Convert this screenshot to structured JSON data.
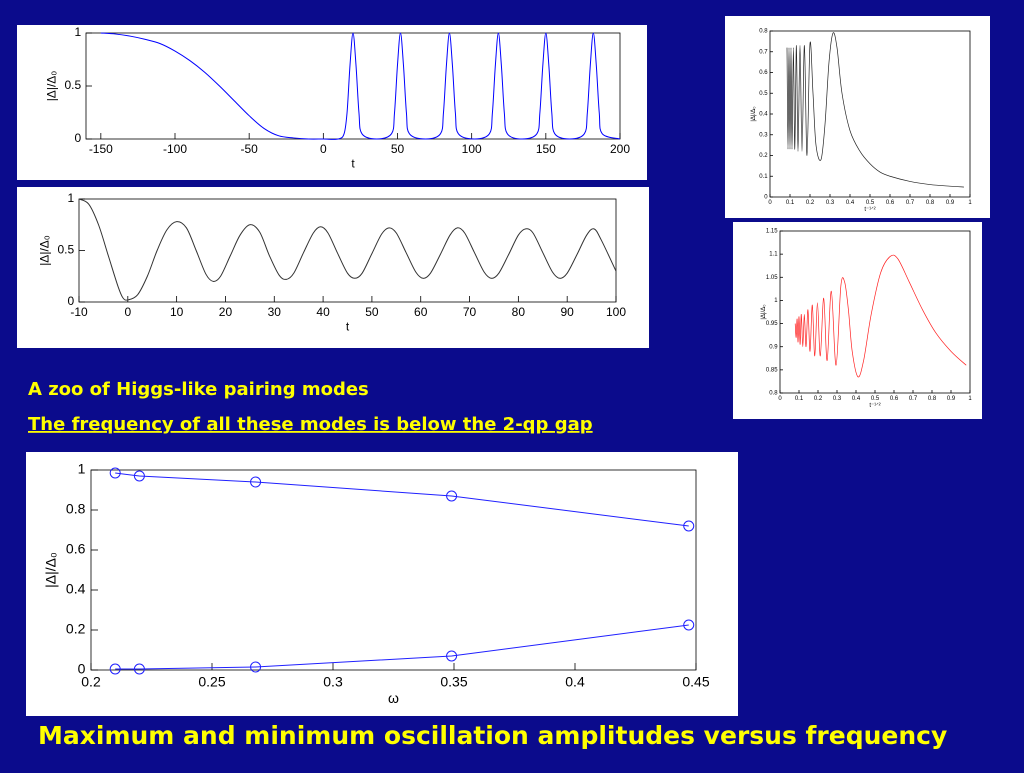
{
  "slide": {
    "caption_1": "A zoo of Higgs-like pairing modes",
    "caption_2": "The frequency of all these modes is below the 2-qp gap",
    "footer": "Maximum and minimum oscillation amplitudes versus frequency"
  },
  "chart_data": [
    {
      "type": "line",
      "xlabel": "t",
      "ylabel": "|Δ|/Δ₀",
      "x": [
        -150,
        -140,
        -130,
        -120,
        -110,
        -100,
        -90,
        -80,
        -70,
        -60,
        -50,
        -40,
        -30,
        -20,
        -10,
        0,
        10,
        14,
        16,
        18,
        20,
        22,
        24,
        26,
        36,
        46,
        48,
        50,
        52,
        54,
        56,
        58,
        69,
        79,
        81,
        83,
        85,
        87,
        89,
        91,
        102,
        112,
        114,
        116,
        118,
        120,
        122,
        124,
        134,
        144,
        146,
        148,
        150,
        152,
        154,
        156,
        166,
        176,
        178,
        180,
        182,
        184,
        186,
        188,
        200
      ],
      "series": [
        {
          "color": "#0000ff",
          "values": [
            1,
            0.99,
            0.97,
            0.94,
            0.9,
            0.83,
            0.74,
            0.63,
            0.5,
            0.36,
            0.22,
            0.1,
            0.03,
            0.01,
            0,
            0,
            0,
            0.05,
            0.25,
            0.7,
            1,
            0.7,
            0.25,
            0.05,
            0,
            0.05,
            0.25,
            0.7,
            1,
            0.7,
            0.25,
            0.05,
            0,
            0.05,
            0.25,
            0.7,
            1,
            0.7,
            0.25,
            0.05,
            0,
            0.05,
            0.25,
            0.7,
            1,
            0.7,
            0.25,
            0.05,
            0,
            0.05,
            0.25,
            0.7,
            1,
            0.7,
            0.25,
            0.05,
            0,
            0.05,
            0.25,
            0.7,
            1,
            0.7,
            0.25,
            0.05,
            0
          ]
        }
      ],
      "xlim": [
        -160,
        200
      ],
      "ylim": [
        0,
        1
      ],
      "xticks": [
        -150,
        -100,
        -50,
        0,
        50,
        100,
        150,
        200
      ],
      "yticks": [
        0,
        0.5,
        1
      ]
    },
    {
      "type": "line",
      "xlabel": "t",
      "ylabel": "|Δ|/Δ₀",
      "x": [
        -10,
        -8,
        -6,
        -4,
        -2,
        -1,
        0,
        2,
        4,
        6,
        8,
        10,
        12,
        14,
        16,
        17.5,
        19,
        21,
        23,
        25,
        27,
        29,
        31,
        32.5,
        34,
        36,
        38,
        39.5,
        41,
        43,
        45,
        46.5,
        48,
        50,
        52,
        53.5,
        55,
        57,
        59,
        60.5,
        62,
        64,
        66,
        67.5,
        69,
        71,
        73,
        74.5,
        76,
        78,
        80,
        81.5,
        83,
        85,
        87,
        88.5,
        90,
        92,
        94,
        95.5,
        97,
        100
      ],
      "series": [
        {
          "color": "#333333",
          "values": [
            1,
            0.95,
            0.75,
            0.45,
            0.15,
            0.04,
            0.02,
            0.07,
            0.25,
            0.5,
            0.7,
            0.78,
            0.72,
            0.5,
            0.27,
            0.2,
            0.25,
            0.45,
            0.65,
            0.75,
            0.68,
            0.45,
            0.26,
            0.22,
            0.28,
            0.48,
            0.67,
            0.73,
            0.67,
            0.47,
            0.28,
            0.23,
            0.28,
            0.47,
            0.66,
            0.72,
            0.67,
            0.48,
            0.29,
            0.23,
            0.28,
            0.46,
            0.65,
            0.72,
            0.67,
            0.48,
            0.29,
            0.23,
            0.28,
            0.46,
            0.65,
            0.71,
            0.67,
            0.48,
            0.29,
            0.23,
            0.28,
            0.46,
            0.65,
            0.71,
            0.6,
            0.3
          ]
        }
      ],
      "xlim": [
        -10,
        100
      ],
      "ylim": [
        0,
        1
      ],
      "xticks": [
        -10,
        0,
        10,
        20,
        30,
        40,
        50,
        60,
        70,
        80,
        90,
        100
      ],
      "yticks": [
        0,
        0.5,
        1
      ]
    },
    {
      "type": "line",
      "xlabel": "t⁻¹ᐟ²",
      "ylabel": "|Δ|/Δ₀",
      "x": [
        0.085,
        0.09,
        0.095,
        0.1,
        0.105,
        0.11,
        0.117,
        0.124,
        0.132,
        0.14,
        0.15,
        0.16,
        0.172,
        0.185,
        0.2,
        0.215,
        0.23,
        0.255,
        0.275,
        0.295,
        0.315,
        0.335,
        0.36,
        0.4,
        0.45,
        0.5,
        0.55,
        0.6,
        0.7,
        0.8,
        0.9,
        0.97
      ],
      "series": [
        {
          "color": "#222222",
          "values": [
            0.72,
            0.23,
            0.72,
            0.23,
            0.72,
            0.23,
            0.72,
            0.23,
            0.73,
            0.22,
            0.73,
            0.22,
            0.73,
            0.2,
            0.74,
            0.5,
            0.25,
            0.18,
            0.35,
            0.65,
            0.79,
            0.72,
            0.5,
            0.32,
            0.22,
            0.16,
            0.12,
            0.1,
            0.075,
            0.06,
            0.052,
            0.048
          ]
        }
      ],
      "xlim": [
        0,
        1
      ],
      "ylim": [
        0,
        0.8
      ],
      "xticks": [
        0,
        0.1,
        0.2,
        0.3,
        0.4,
        0.5,
        0.6,
        0.7,
        0.8,
        0.9,
        1
      ],
      "yticks": [
        0,
        0.1,
        0.2,
        0.3,
        0.4,
        0.5,
        0.6,
        0.7,
        0.8
      ]
    },
    {
      "type": "line",
      "xlabel": "t⁻¹ᐟ²",
      "ylabel": "|Δ|/Δ₀",
      "x": [
        0.08,
        0.085,
        0.09,
        0.095,
        0.1,
        0.106,
        0.112,
        0.12,
        0.128,
        0.137,
        0.147,
        0.158,
        0.17,
        0.183,
        0.197,
        0.212,
        0.23,
        0.248,
        0.27,
        0.295,
        0.32,
        0.34,
        0.36,
        0.38,
        0.41,
        0.44,
        0.48,
        0.53,
        0.58,
        0.62,
        0.68,
        0.75,
        0.82,
        0.9,
        0.98
      ],
      "series": [
        {
          "color": "#ff2020",
          "values": [
            0.95,
            0.92,
            0.96,
            0.91,
            0.965,
            0.905,
            0.97,
            0.9,
            0.97,
            0.9,
            0.98,
            0.89,
            0.99,
            0.88,
            0.995,
            0.88,
            1.005,
            0.87,
            1.02,
            0.86,
            1.03,
            1.04,
            0.98,
            0.89,
            0.835,
            0.87,
            0.97,
            1.06,
            1.095,
            1.09,
            1.04,
            0.98,
            0.93,
            0.89,
            0.86
          ]
        }
      ],
      "xlim": [
        0,
        1
      ],
      "ylim": [
        0.8,
        1.15
      ],
      "xticks": [
        0,
        0.1,
        0.2,
        0.3,
        0.4,
        0.5,
        0.6,
        0.7,
        0.8,
        0.9,
        1
      ],
      "yticks": [
        0.8,
        0.85,
        0.9,
        0.95,
        1,
        1.05,
        1.1,
        1.15
      ]
    },
    {
      "type": "line",
      "xlabel": "ω",
      "ylabel": "|Δ|/Δ₀",
      "marker": "circle",
      "x": [
        0.21,
        0.22,
        0.268,
        0.349,
        0.447
      ],
      "series": [
        {
          "color": "#2020ff",
          "values": [
            0.985,
            0.97,
            0.94,
            0.87,
            0.72
          ]
        },
        {
          "color": "#2020ff",
          "values": [
            0.005,
            0.005,
            0.015,
            0.07,
            0.225
          ]
        }
      ],
      "xlim": [
        0.2,
        0.45
      ],
      "ylim": [
        0,
        1
      ],
      "xticks": [
        0.2,
        0.25,
        0.3,
        0.35,
        0.4,
        0.45
      ],
      "yticks": [
        0,
        0.2,
        0.4,
        0.6,
        0.8,
        1
      ]
    }
  ]
}
